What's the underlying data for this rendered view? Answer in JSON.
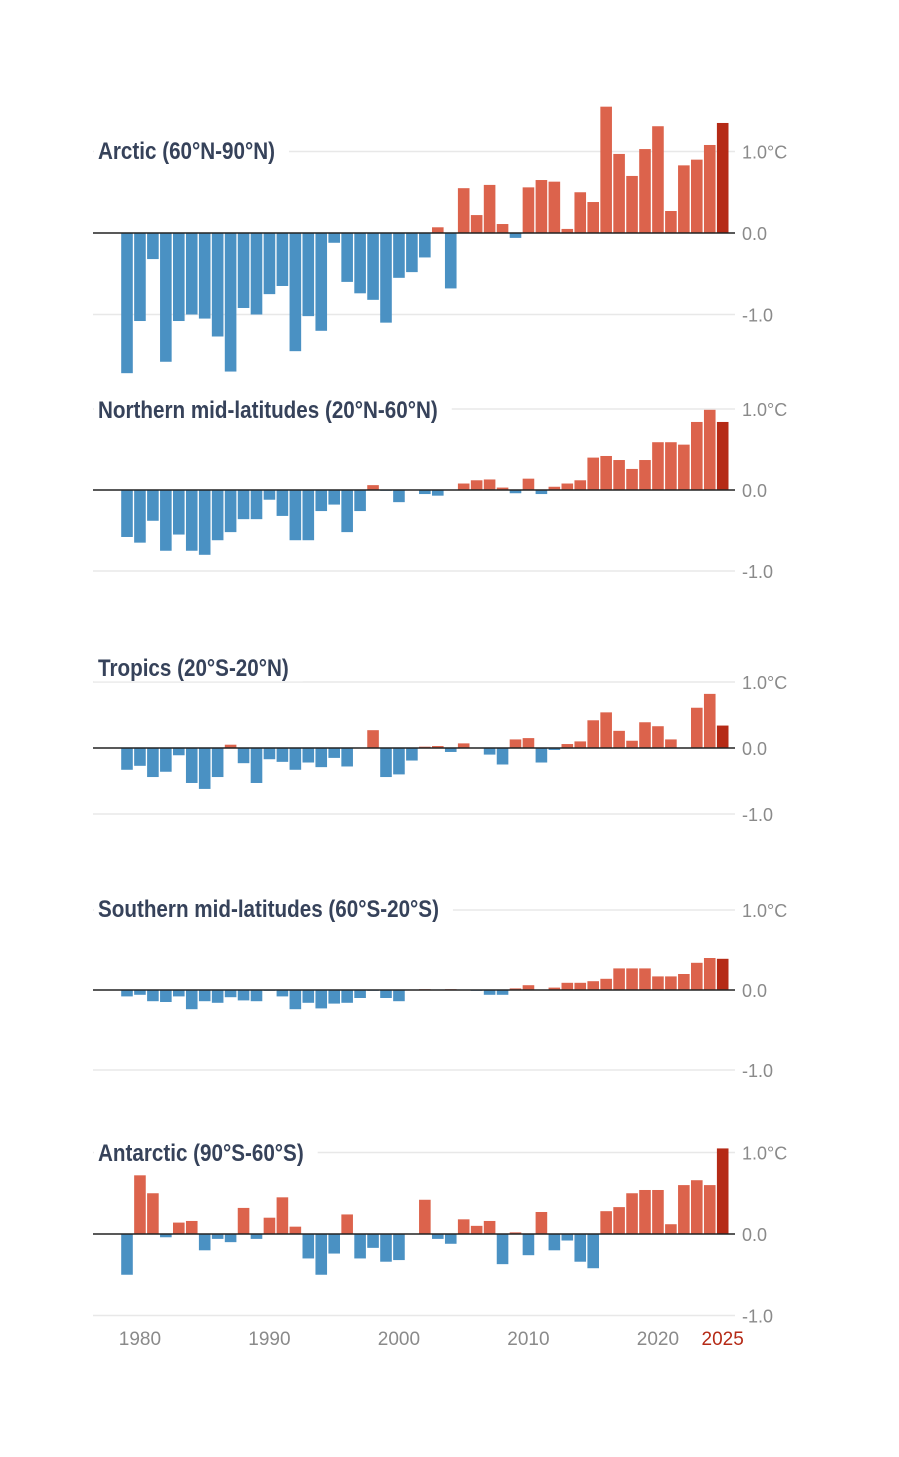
{
  "chart_data": [
    {
      "type": "bar",
      "title": "Arctic (60°N-90°N)",
      "years": [
        1979,
        1980,
        1981,
        1982,
        1983,
        1984,
        1985,
        1986,
        1987,
        1988,
        1989,
        1990,
        1991,
        1992,
        1993,
        1994,
        1995,
        1996,
        1997,
        1998,
        1999,
        2000,
        2001,
        2002,
        2003,
        2004,
        2005,
        2006,
        2007,
        2008,
        2009,
        2010,
        2011,
        2012,
        2013,
        2014,
        2015,
        2016,
        2017,
        2018,
        2019,
        2020,
        2021,
        2022,
        2023,
        2024,
        2025
      ],
      "values": [
        -1.72,
        -1.08,
        -0.32,
        -1.58,
        -1.08,
        -1.0,
        -1.05,
        -1.27,
        -1.7,
        -0.92,
        -1.0,
        -0.75,
        -0.65,
        -1.45,
        -1.02,
        -1.2,
        -0.12,
        -0.6,
        -0.74,
        -0.82,
        -1.1,
        -0.55,
        -0.48,
        -0.3,
        0.07,
        -0.68,
        0.55,
        0.22,
        0.59,
        0.11,
        -0.06,
        0.56,
        0.65,
        0.63,
        0.05,
        0.5,
        0.38,
        1.55,
        0.97,
        0.7,
        1.03,
        1.31,
        0.27,
        0.83,
        0.9,
        1.08,
        1.35
      ],
      "yticks": [
        "1.0°C",
        "0.0",
        "-1.0"
      ],
      "ylim": [
        -1.9,
        1.9
      ]
    },
    {
      "type": "bar",
      "title": "Northern mid-latitudes (20°N-60°N)",
      "years": [
        1979,
        1980,
        1981,
        1982,
        1983,
        1984,
        1985,
        1986,
        1987,
        1988,
        1989,
        1990,
        1991,
        1992,
        1993,
        1994,
        1995,
        1996,
        1997,
        1998,
        1999,
        2000,
        2001,
        2002,
        2003,
        2004,
        2005,
        2006,
        2007,
        2008,
        2009,
        2010,
        2011,
        2012,
        2013,
        2014,
        2015,
        2016,
        2017,
        2018,
        2019,
        2020,
        2021,
        2022,
        2023,
        2024,
        2025
      ],
      "values": [
        -0.58,
        -0.65,
        -0.38,
        -0.75,
        -0.55,
        -0.75,
        -0.8,
        -0.62,
        -0.52,
        -0.36,
        -0.36,
        -0.12,
        -0.32,
        -0.62,
        -0.62,
        -0.26,
        -0.18,
        -0.52,
        -0.26,
        0.06,
        -0.01,
        -0.15,
        0.0,
        -0.05,
        -0.07,
        0.0,
        0.08,
        0.12,
        0.13,
        0.03,
        -0.04,
        0.14,
        -0.05,
        0.04,
        0.08,
        0.12,
        0.4,
        0.42,
        0.37,
        0.26,
        0.37,
        0.59,
        0.59,
        0.56,
        0.84,
        0.99,
        0.84
      ],
      "yticks": [
        "1.0°C",
        "0.0",
        "-1.0"
      ],
      "ylim": [
        -1.9,
        1.9
      ]
    },
    {
      "type": "bar",
      "title": "Tropics (20°S-20°N)",
      "years": [
        1979,
        1980,
        1981,
        1982,
        1983,
        1984,
        1985,
        1986,
        1987,
        1988,
        1989,
        1990,
        1991,
        1992,
        1993,
        1994,
        1995,
        1996,
        1997,
        1998,
        1999,
        2000,
        2001,
        2002,
        2003,
        2004,
        2005,
        2006,
        2007,
        2008,
        2009,
        2010,
        2011,
        2012,
        2013,
        2014,
        2015,
        2016,
        2017,
        2018,
        2019,
        2020,
        2021,
        2022,
        2023,
        2024,
        2025
      ],
      "values": [
        -0.33,
        -0.27,
        -0.44,
        -0.36,
        -0.11,
        -0.53,
        -0.62,
        -0.44,
        0.05,
        -0.23,
        -0.53,
        -0.17,
        -0.21,
        -0.33,
        -0.22,
        -0.29,
        -0.15,
        -0.28,
        0.0,
        0.27,
        -0.44,
        -0.4,
        -0.19,
        0.02,
        0.03,
        -0.06,
        0.07,
        0.0,
        -0.1,
        -0.25,
        0.13,
        0.15,
        -0.22,
        -0.03,
        0.06,
        0.1,
        0.42,
        0.54,
        0.26,
        0.11,
        0.39,
        0.33,
        0.13,
        0.0,
        0.61,
        0.82,
        0.34
      ],
      "yticks": [
        "1.0°C",
        "0.0",
        "-1.0"
      ],
      "ylim": [
        -1.0,
        1.2
      ]
    },
    {
      "type": "bar",
      "title": "Southern mid-latitudes (60°S-20°S)",
      "years": [
        1979,
        1980,
        1981,
        1982,
        1983,
        1984,
        1985,
        1986,
        1987,
        1988,
        1989,
        1990,
        1991,
        1992,
        1993,
        1994,
        1995,
        1996,
        1997,
        1998,
        1999,
        2000,
        2001,
        2002,
        2003,
        2004,
        2005,
        2006,
        2007,
        2008,
        2009,
        2010,
        2011,
        2012,
        2013,
        2014,
        2015,
        2016,
        2017,
        2018,
        2019,
        2020,
        2021,
        2022,
        2023,
        2024,
        2025
      ],
      "values": [
        -0.08,
        -0.06,
        -0.14,
        -0.15,
        -0.08,
        -0.24,
        -0.14,
        -0.16,
        -0.09,
        -0.13,
        -0.14,
        -0.01,
        -0.08,
        -0.24,
        -0.16,
        -0.23,
        -0.17,
        -0.16,
        -0.1,
        -0.01,
        -0.1,
        -0.14,
        0.0,
        0.01,
        0.0,
        0.01,
        0.0,
        -0.01,
        -0.06,
        -0.06,
        0.02,
        0.06,
        0.0,
        0.03,
        0.09,
        0.09,
        0.11,
        0.14,
        0.27,
        0.27,
        0.27,
        0.17,
        0.17,
        0.2,
        0.34,
        0.4,
        0.39
      ],
      "yticks": [
        "1.0°C",
        "0.0",
        "-1.0"
      ],
      "ylim": [
        -1.2,
        1.2
      ]
    },
    {
      "type": "bar",
      "title": "Antarctic (90°S-60°S)",
      "years": [
        1979,
        1980,
        1981,
        1982,
        1983,
        1984,
        1985,
        1986,
        1987,
        1988,
        1989,
        1990,
        1991,
        1992,
        1993,
        1994,
        1995,
        1996,
        1997,
        1998,
        1999,
        2000,
        2001,
        2002,
        2003,
        2004,
        2005,
        2006,
        2007,
        2008,
        2009,
        2010,
        2011,
        2012,
        2013,
        2014,
        2015,
        2016,
        2017,
        2018,
        2019,
        2020,
        2021,
        2022,
        2023,
        2024,
        2025
      ],
      "values": [
        -0.5,
        0.72,
        0.5,
        -0.04,
        0.14,
        0.16,
        -0.2,
        -0.06,
        -0.1,
        0.32,
        -0.06,
        0.2,
        0.45,
        0.09,
        -0.3,
        -0.5,
        -0.24,
        0.24,
        -0.3,
        -0.17,
        -0.34,
        -0.32,
        0.0,
        0.42,
        -0.06,
        -0.12,
        0.18,
        0.1,
        0.16,
        -0.37,
        0.02,
        -0.26,
        0.27,
        -0.2,
        -0.08,
        -0.34,
        -0.42,
        0.28,
        0.33,
        0.5,
        0.54,
        0.54,
        0.12,
        0.6,
        0.66,
        0.6,
        1.05
      ],
      "yticks": [
        "1.0°C",
        "0.0",
        "-1.0"
      ],
      "ylim": [
        -1.0,
        1.2
      ]
    }
  ],
  "x_axis": {
    "labels": [
      "1980",
      "1990",
      "2000",
      "2010",
      "2020",
      "2025"
    ],
    "years": [
      1980,
      1990,
      2000,
      2010,
      2020,
      2025
    ],
    "highlight": "2025"
  },
  "colors": {
    "negative": "#4a91c3",
    "positive": "#dc634c",
    "highlight": "#b52a16",
    "title": "#36425a",
    "tick": "#8a8a8a",
    "grid": "#e8e8e8",
    "zero": "#222222"
  }
}
